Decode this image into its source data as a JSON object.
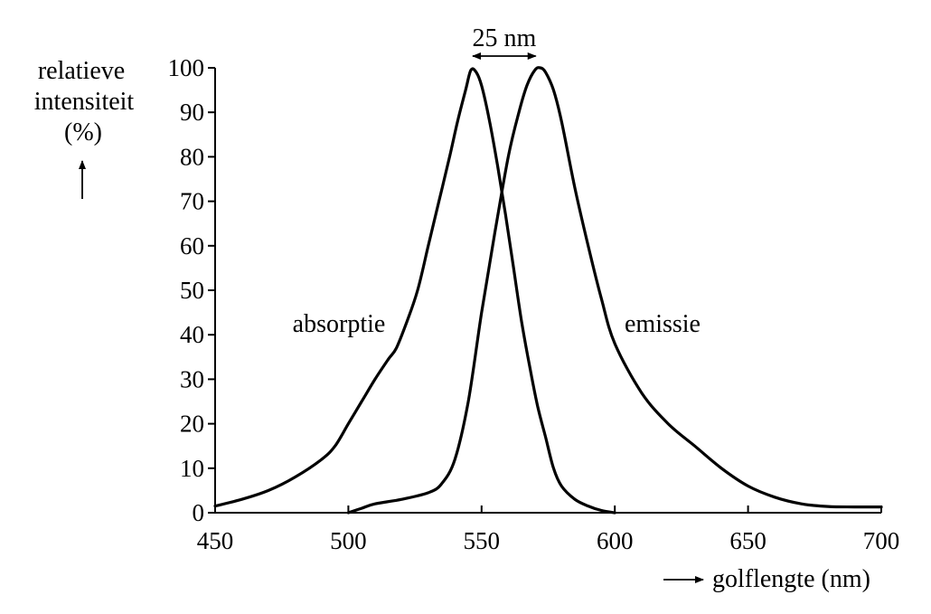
{
  "chart_data": {
    "type": "line",
    "ylabel_lines": [
      "relatieve",
      "intensiteit",
      "(%)"
    ],
    "xlabel": "golflengte (nm)",
    "xlim": [
      450,
      700
    ],
    "ylim": [
      0,
      100
    ],
    "x_ticks": [
      450,
      500,
      550,
      600,
      650,
      700
    ],
    "y_ticks": [
      0,
      10,
      20,
      30,
      40,
      50,
      60,
      70,
      80,
      90,
      100
    ],
    "grid": false,
    "series": [
      {
        "name": "absorptie",
        "points": [
          [
            450,
            1.5
          ],
          [
            460,
            3
          ],
          [
            470,
            5
          ],
          [
            480,
            8
          ],
          [
            490,
            12
          ],
          [
            495,
            15
          ],
          [
            500,
            20
          ],
          [
            505,
            25
          ],
          [
            510,
            30
          ],
          [
            515,
            34.5
          ],
          [
            518,
            37
          ],
          [
            522,
            43
          ],
          [
            526,
            50
          ],
          [
            530,
            60
          ],
          [
            534,
            70
          ],
          [
            538,
            80
          ],
          [
            541,
            88
          ],
          [
            544,
            95
          ],
          [
            546,
            99.5
          ],
          [
            548,
            99
          ],
          [
            550,
            96
          ],
          [
            553,
            88
          ],
          [
            556,
            78
          ],
          [
            559,
            67
          ],
          [
            562,
            55
          ],
          [
            565,
            43
          ],
          [
            568,
            33
          ],
          [
            571,
            24
          ],
          [
            574,
            17
          ],
          [
            577,
            10
          ],
          [
            580,
            6
          ],
          [
            585,
            3
          ],
          [
            590,
            1.5
          ],
          [
            595,
            0.5
          ],
          [
            600,
            0
          ]
        ]
      },
      {
        "name": "emissie",
        "points": [
          [
            500,
            0
          ],
          [
            505,
            1
          ],
          [
            510,
            2
          ],
          [
            520,
            3
          ],
          [
            530,
            4.5
          ],
          [
            535,
            6.5
          ],
          [
            540,
            12
          ],
          [
            545,
            25
          ],
          [
            550,
            45
          ],
          [
            555,
            63
          ],
          [
            560,
            80
          ],
          [
            564,
            90
          ],
          [
            567,
            96
          ],
          [
            570,
            99.5
          ],
          [
            572,
            100
          ],
          [
            574,
            99
          ],
          [
            577,
            95
          ],
          [
            580,
            88
          ],
          [
            585,
            73
          ],
          [
            590,
            60
          ],
          [
            595,
            48
          ],
          [
            600,
            38
          ],
          [
            610,
            27
          ],
          [
            620,
            20
          ],
          [
            630,
            15
          ],
          [
            640,
            10
          ],
          [
            650,
            6
          ],
          [
            660,
            3.5
          ],
          [
            670,
            2
          ],
          [
            680,
            1.4
          ],
          [
            690,
            1.3
          ],
          [
            700,
            1.3
          ]
        ]
      }
    ],
    "annotation": {
      "text": "25 nm",
      "from_x": 546,
      "to_x": 571
    }
  }
}
